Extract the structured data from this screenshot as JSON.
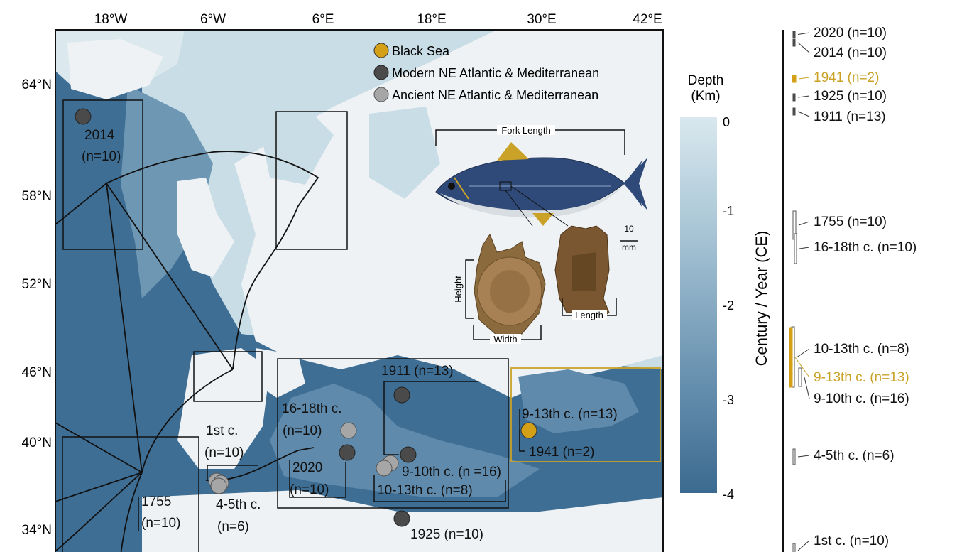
{
  "map": {
    "lon_ticks": [
      "18°W",
      "6°W",
      "6°E",
      "18°E",
      "30°E",
      "42°E"
    ],
    "lat_ticks": [
      "64°N",
      "58°N",
      "52°N",
      "46°N",
      "40°N",
      "34°N"
    ]
  },
  "legend": {
    "items": [
      {
        "label": "Black Sea",
        "color": "#d4a017"
      },
      {
        "label": "Modern NE Atlantic & Mediterranean",
        "color": "#4a4a4a"
      },
      {
        "label": "Ancient NE Atlantic & Mediterranean",
        "color": "#a6a6a6"
      }
    ]
  },
  "depth_scale": {
    "title_line1": "Depth",
    "title_line2": "(Km)",
    "ticks": [
      "0",
      "-1",
      "-2",
      "-3",
      "-4"
    ],
    "color_top": "#d6e6ec",
    "color_bottom": "#3b6a90"
  },
  "sites": {
    "iceland_year": "2014",
    "iceland_n": "(n=10)",
    "first_c_line1": "1st c.",
    "first_c_line2": "(n=10)",
    "c1755_line1": "1755",
    "c1755_line2": "(n=10)",
    "c4_5_line1": "4-5th c.",
    "c4_5_line2": "(n=6)",
    "c16_18_line1": "16-18th c.",
    "c16_18_line2": "(n=10)",
    "y2020_line1": "2020",
    "y2020_line2": "(n=10)",
    "y1911": "1911 (n=13)",
    "c9_10": "9-10th c. (n =16)",
    "c10_13": "10-13th c. (n=8)",
    "y1925": "1925 (n=10)",
    "bs_9_13": "9-13th c. (n=13)",
    "bs_1941": "1941 (n=2)"
  },
  "inset": {
    "fork_length": "Fork Length",
    "height": "Height",
    "width": "Width",
    "length": "Length",
    "scale_value": "10",
    "scale_unit": "mm"
  },
  "timeline": {
    "axis_label": "Century / Year (CE)",
    "entries": [
      {
        "label": "2020 (n=10)",
        "type": "modern"
      },
      {
        "label": "2014 (n=10)",
        "type": "modern"
      },
      {
        "label": "1941 (n=2)",
        "type": "black-sea"
      },
      {
        "label": "1925 (n=10)",
        "type": "modern"
      },
      {
        "label": "1911 (n=13)",
        "type": "modern"
      },
      {
        "label": "1755 (n=10)",
        "type": "ancient"
      },
      {
        "label": "16-18th c. (n=10)",
        "type": "ancient"
      },
      {
        "label": "10-13th c. (n=8)",
        "type": "ancient"
      },
      {
        "label": "9-13th c. (n=13)",
        "type": "black-sea"
      },
      {
        "label": "9-10th c. (n=16)",
        "type": "ancient"
      },
      {
        "label": "4-5th c. (n=6)",
        "type": "ancient"
      },
      {
        "label": "1st c. (n=10)",
        "type": "ancient"
      }
    ]
  }
}
